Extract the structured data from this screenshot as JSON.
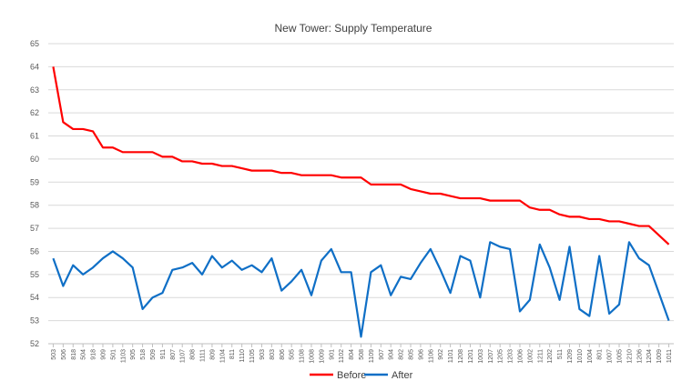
{
  "chart_data": {
    "type": "line",
    "title": "New Tower: Supply Temperature",
    "xlabel": "",
    "ylabel": "",
    "ylim": [
      52,
      65
    ],
    "yticks": [
      52,
      53,
      54,
      55,
      56,
      57,
      58,
      59,
      60,
      61,
      62,
      63,
      64,
      65
    ],
    "grid": true,
    "legend": "bottom",
    "categories": [
      "503",
      "506",
      "818",
      "504",
      "918",
      "909",
      "501",
      "1103",
      "905",
      "518",
      "509",
      "911",
      "807",
      "1107",
      "808",
      "1111",
      "809",
      "1104",
      "811",
      "1110",
      "1105",
      "903",
      "803",
      "806",
      "505",
      "1108",
      "1008",
      "1009",
      "901",
      "1102",
      "804",
      "508",
      "1109",
      "907",
      "904",
      "802",
      "805",
      "906",
      "1106",
      "902",
      "1101",
      "1208",
      "1201",
      "1003",
      "1207",
      "1205",
      "1203",
      "1006",
      "1002",
      "1211",
      "1202",
      "511",
      "1209",
      "1010",
      "1004",
      "801",
      "1007",
      "1005",
      "1210",
      "1206",
      "1204",
      "1009",
      "1011"
    ],
    "series": [
      {
        "name": "Before",
        "color": "#ff0000",
        "values": [
          64.0,
          61.6,
          61.3,
          61.3,
          61.2,
          60.5,
          60.5,
          60.3,
          60.3,
          60.3,
          60.3,
          60.1,
          60.1,
          59.9,
          59.9,
          59.8,
          59.8,
          59.7,
          59.7,
          59.6,
          59.5,
          59.5,
          59.5,
          59.4,
          59.4,
          59.3,
          59.3,
          59.3,
          59.3,
          59.2,
          59.2,
          59.2,
          58.9,
          58.9,
          58.9,
          58.9,
          58.7,
          58.6,
          58.5,
          58.5,
          58.4,
          58.3,
          58.3,
          58.3,
          58.2,
          58.2,
          58.2,
          58.2,
          57.9,
          57.8,
          57.8,
          57.6,
          57.5,
          57.5,
          57.4,
          57.4,
          57.3,
          57.3,
          57.2,
          57.1,
          57.1,
          56.7,
          56.3
        ]
      },
      {
        "name": "After",
        "color": "#0f6fc6",
        "values": [
          55.7,
          54.5,
          55.4,
          55.0,
          55.3,
          55.7,
          56.0,
          55.7,
          55.3,
          53.5,
          54.0,
          54.2,
          55.2,
          55.3,
          55.5,
          55.0,
          55.8,
          55.3,
          55.6,
          55.2,
          55.4,
          55.1,
          55.7,
          54.3,
          54.7,
          55.2,
          54.1,
          55.6,
          56.1,
          55.1,
          55.1,
          52.3,
          55.1,
          55.4,
          54.1,
          54.9,
          54.8,
          55.5,
          56.1,
          55.2,
          54.2,
          55.8,
          55.6,
          54.0,
          56.4,
          56.2,
          56.1,
          53.4,
          53.9,
          56.3,
          55.3,
          53.9,
          56.2,
          53.5,
          53.2,
          55.8,
          53.3,
          53.7,
          56.4,
          55.7,
          55.4,
          54.2,
          53.0
        ]
      }
    ]
  }
}
